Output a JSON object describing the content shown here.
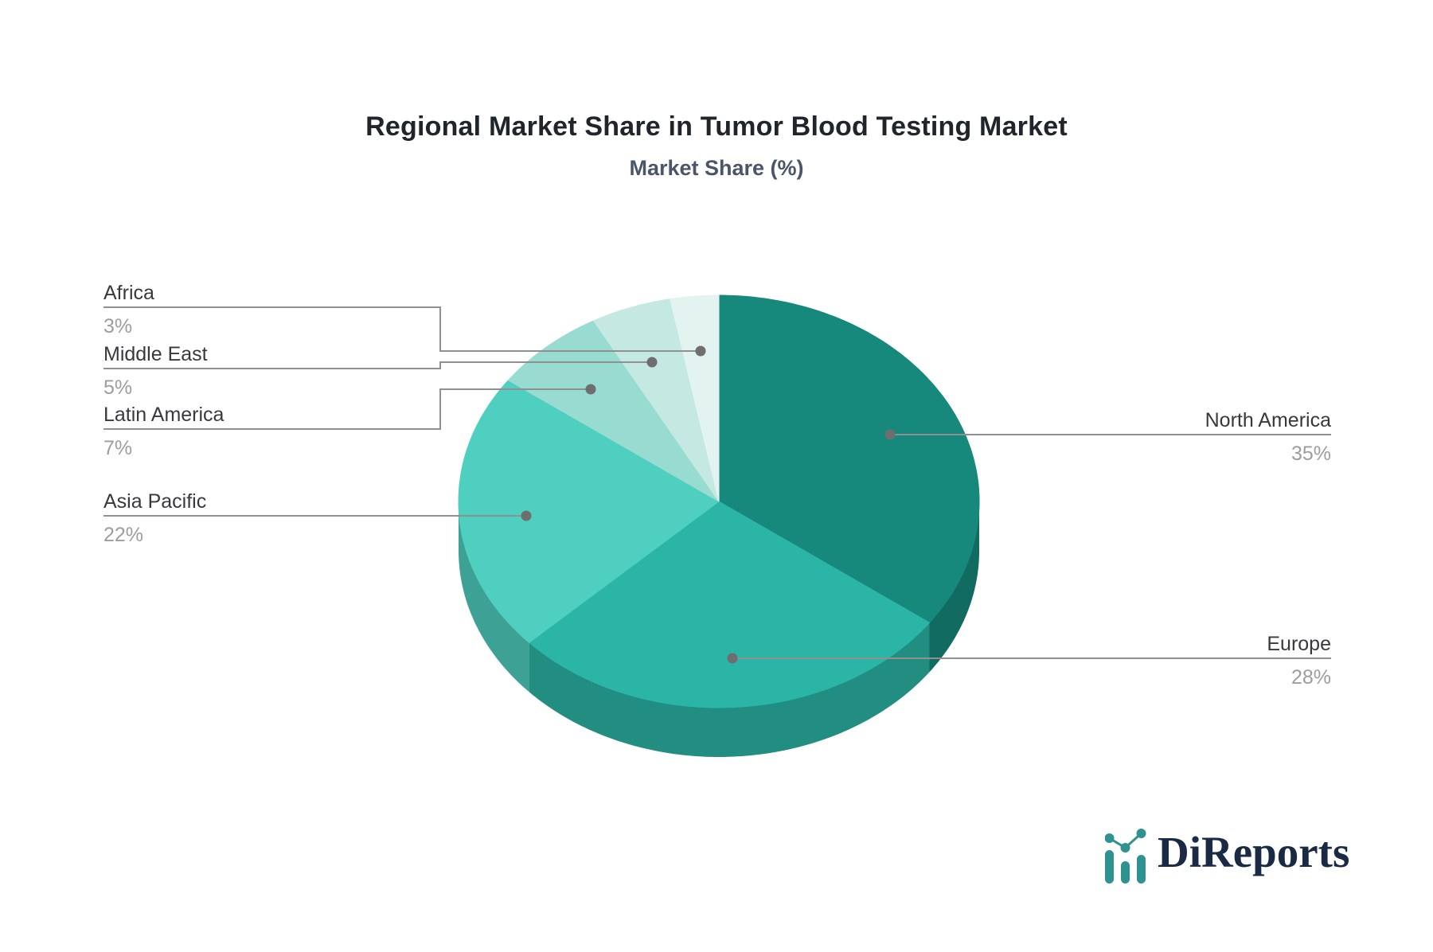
{
  "chart_data": {
    "type": "pie",
    "style": "3d",
    "title": "Regional Market Share in Tumor Blood Testing Market",
    "subtitle": "Market Share (%)",
    "unit": "%",
    "start_angle_deg": 0,
    "direction": "clockwise",
    "labels_layout": "callout-leader-lines",
    "legend": "none",
    "segments": [
      {
        "label": "North America",
        "value": 35,
        "value_label": "35%",
        "color": "#17897C"
      },
      {
        "label": "Europe",
        "value": 28,
        "value_label": "28%",
        "color": "#2BB5A6"
      },
      {
        "label": "Asia Pacific",
        "value": 22,
        "value_label": "22%",
        "color": "#4FCFC0"
      },
      {
        "label": "Latin America",
        "value": 7,
        "value_label": "7%",
        "color": "#98DBD1"
      },
      {
        "label": "Middle East",
        "value": 5,
        "value_label": "5%",
        "color": "#C4E8E2"
      },
      {
        "label": "Africa",
        "value": 3,
        "value_label": "3%",
        "color": "#E3F3F0"
      }
    ],
    "colors": {
      "leader_line": "#909090",
      "leader_dot": "#6e6e6e",
      "label_text": "#38393b",
      "value_text": "#9d9d9d"
    }
  },
  "logo": {
    "text": "DiReports",
    "icon": "bar-line-chart-icon",
    "icon_color": "#2E9390",
    "text_color": "#1a2a44"
  }
}
